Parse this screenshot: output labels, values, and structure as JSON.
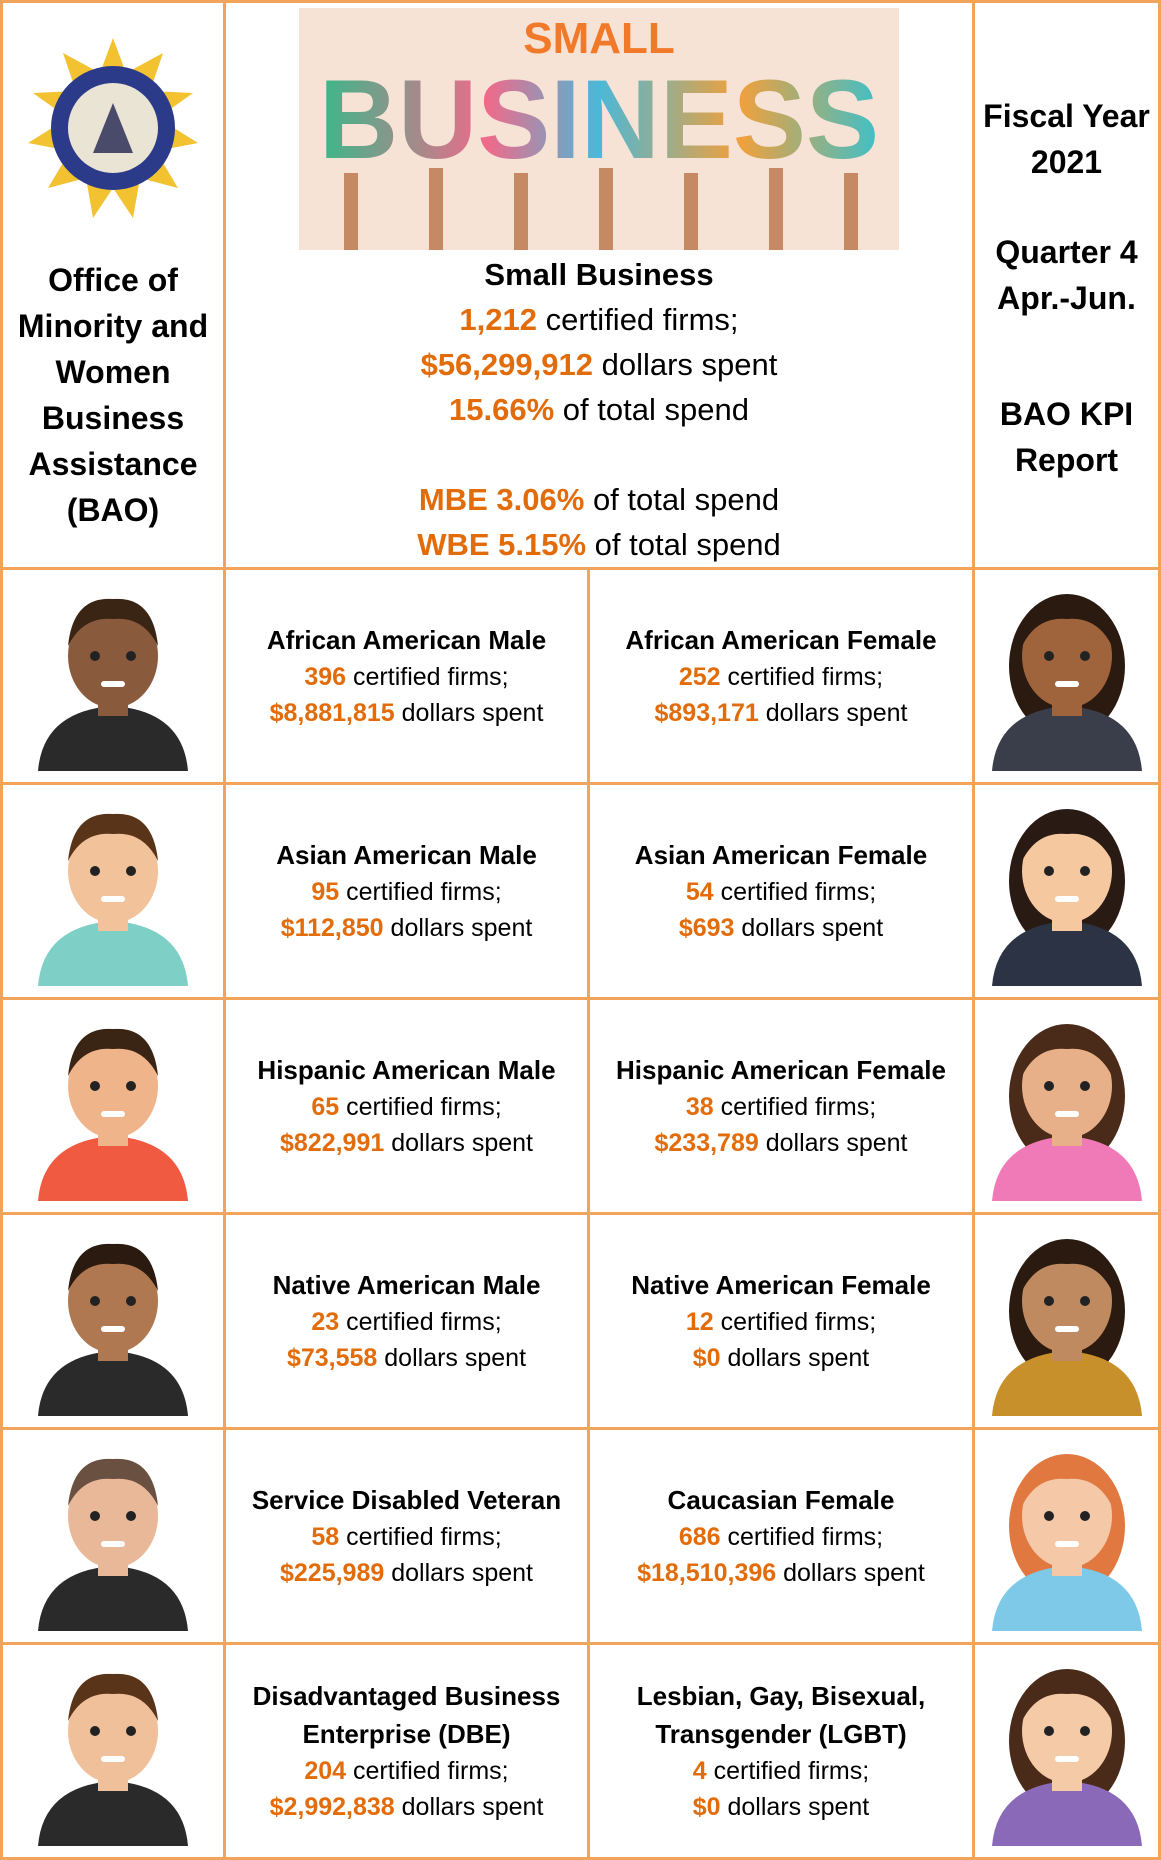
{
  "header": {
    "left_title": "Office of Minority and Women Business Assistance (BAO)",
    "banner": {
      "small": "SMALL",
      "business": "BUSINESS"
    },
    "summary": {
      "title": "Small Business",
      "lines": [
        {
          "highlight": "1,212",
          "text": "certified firms;"
        },
        {
          "highlight": "$56,299,912",
          "text": "dollars spent"
        },
        {
          "highlight": "15.66%",
          "text": "of total spend"
        },
        {
          "highlight": "MBE 3.06%",
          "text": "of total spend"
        },
        {
          "highlight": "WBE 5.15%",
          "text": "of total spend"
        }
      ]
    },
    "right": {
      "fiscal": "Fiscal Year 2021",
      "quarter": "Quarter 4 Apr.-Jun.",
      "report": "BAO KPI Report"
    }
  },
  "groups": [
    {
      "name": "African American Male",
      "firms": {
        "highlight": "396",
        "text": "certified firms;"
      },
      "spent": {
        "highlight": "$8,881,815",
        "text": "dollars spent"
      }
    },
    {
      "name": "African American Female",
      "firms": {
        "highlight": "252",
        "text": "certified firms;"
      },
      "spent": {
        "highlight": "$893,171",
        "text": "dollars spent"
      }
    },
    {
      "name": "Asian American Male",
      "firms": {
        "highlight": "95",
        "text": "certified firms;"
      },
      "spent": {
        "highlight": "$112,850",
        "text": "dollars spent"
      }
    },
    {
      "name": "Asian American Female",
      "firms": {
        "highlight": "54",
        "text": "certified firms;"
      },
      "spent": {
        "highlight": "$693",
        "text": "dollars spent"
      }
    },
    {
      "name": "Hispanic American Male",
      "firms": {
        "highlight": "65",
        "text": "certified firms;"
      },
      "spent": {
        "highlight": "$822,991",
        "text": "dollars spent"
      }
    },
    {
      "name": "Hispanic American Female",
      "firms": {
        "highlight": "38",
        "text": "certified firms;"
      },
      "spent": {
        "highlight": "$233,789",
        "text": "dollars spent"
      }
    },
    {
      "name": "Native American Male",
      "firms": {
        "highlight": "23",
        "text": "certified firms;"
      },
      "spent": {
        "highlight": "$73,558",
        "text": "dollars spent"
      }
    },
    {
      "name": "Native American Female",
      "firms": {
        "highlight": "12",
        "text": "certified firms;"
      },
      "spent": {
        "highlight": "$0",
        "text": "dollars spent"
      }
    },
    {
      "name": "Service Disabled Veteran",
      "firms": {
        "highlight": "58",
        "text": "certified firms;"
      },
      "spent": {
        "highlight": "$225,989",
        "text": "dollars spent"
      }
    },
    {
      "name": "Caucasian Female",
      "firms": {
        "highlight": "686",
        "text": "certified firms;"
      },
      "spent": {
        "highlight": "$18,510,396",
        "text": "dollars spent"
      }
    },
    {
      "name": "Disadvantaged Business Enterprise (DBE)",
      "firms": {
        "highlight": "204",
        "text": "certified firms;"
      },
      "spent": {
        "highlight": "$2,992,838",
        "text": "dollars spent"
      }
    },
    {
      "name": "Lesbian, Gay, Bisexual, Transgender (LGBT)",
      "firms": {
        "highlight": "4",
        "text": "certified firms;"
      },
      "spent": {
        "highlight": "$0",
        "text": "dollars spent"
      }
    }
  ]
}
